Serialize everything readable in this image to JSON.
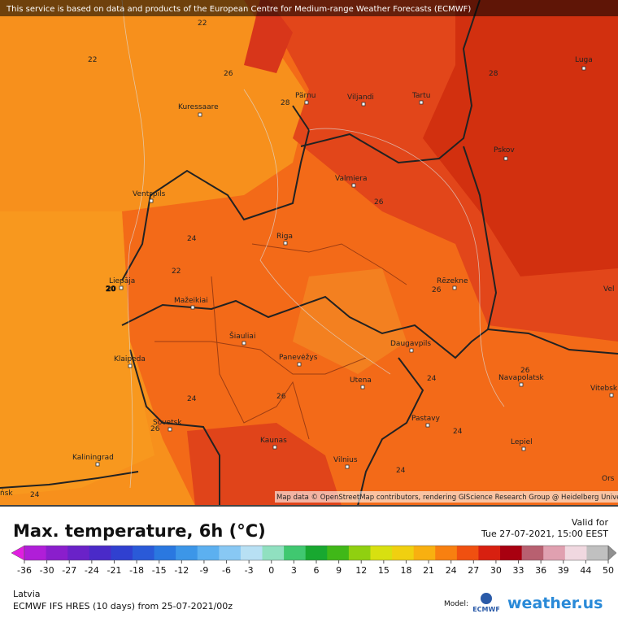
{
  "banner": "This service is based on data and products of the European Centre for Medium-range Weather Forecasts (ECMWF)",
  "attribution": "Map data © OpenStreetMap contributors, rendering GIScience Research Group @ Heidelberg University",
  "cities": [
    "Luga",
    "Tartu",
    "Pärnu",
    "Viljandi",
    "Kuressaare",
    "Pskov",
    "Valmiera",
    "Ventspils",
    "Riga",
    "Rēzekne",
    "Liepāja",
    "Vel",
    "Mažeikiai",
    "Šiauliai",
    "Klaipeda",
    "Panevėžys",
    "Daugavpils",
    "Navapolatsk",
    "Utena",
    "Vitebsk",
    "Pastavy",
    "Sovetsk",
    "Kaunas",
    "Lepiel",
    "Kaliningrad",
    "Vilnius",
    "Ors",
    "ńsk"
  ],
  "contour_labels": [
    22,
    22,
    26,
    28,
    28,
    26,
    24,
    22,
    20,
    26,
    24,
    26,
    24,
    26,
    26,
    24,
    24,
    24
  ],
  "title": "Max. temperature, 6h (°C)",
  "valid_label": "Valid for",
  "valid_time": "Tue 27-07-2021, 15:00 EEST",
  "region": "Latvia",
  "model_run": "ECMWF IFS HRES (10 days) from 25-07-2021/00z",
  "model_label": "Model:",
  "model_logo": "ECMWF",
  "brand": "weather.us",
  "legend": {
    "ticks": [
      -36,
      -30,
      -27,
      -24,
      -21,
      -18,
      -15,
      -12,
      -9,
      -6,
      -3,
      0,
      3,
      6,
      9,
      12,
      15,
      18,
      21,
      24,
      27,
      30,
      33,
      36,
      39,
      44,
      50
    ],
    "colors": [
      "#e01ee0",
      "#b01ed8",
      "#8a1ecc",
      "#6a22c8",
      "#4a2ac8",
      "#3040d0",
      "#2a5ad8",
      "#2a78e0",
      "#3c96e8",
      "#5cb0f0",
      "#88c8f4",
      "#b8e0f4",
      "#90e0c0",
      "#40c870",
      "#18a830",
      "#40b818",
      "#90d010",
      "#d8e010",
      "#f0d010",
      "#f8b010",
      "#f88010",
      "#f05010",
      "#d82010",
      "#a80010",
      "#b86070",
      "#e0a0b0",
      "#f0d8e0",
      "#c0c0c0",
      "#909090"
    ]
  }
}
